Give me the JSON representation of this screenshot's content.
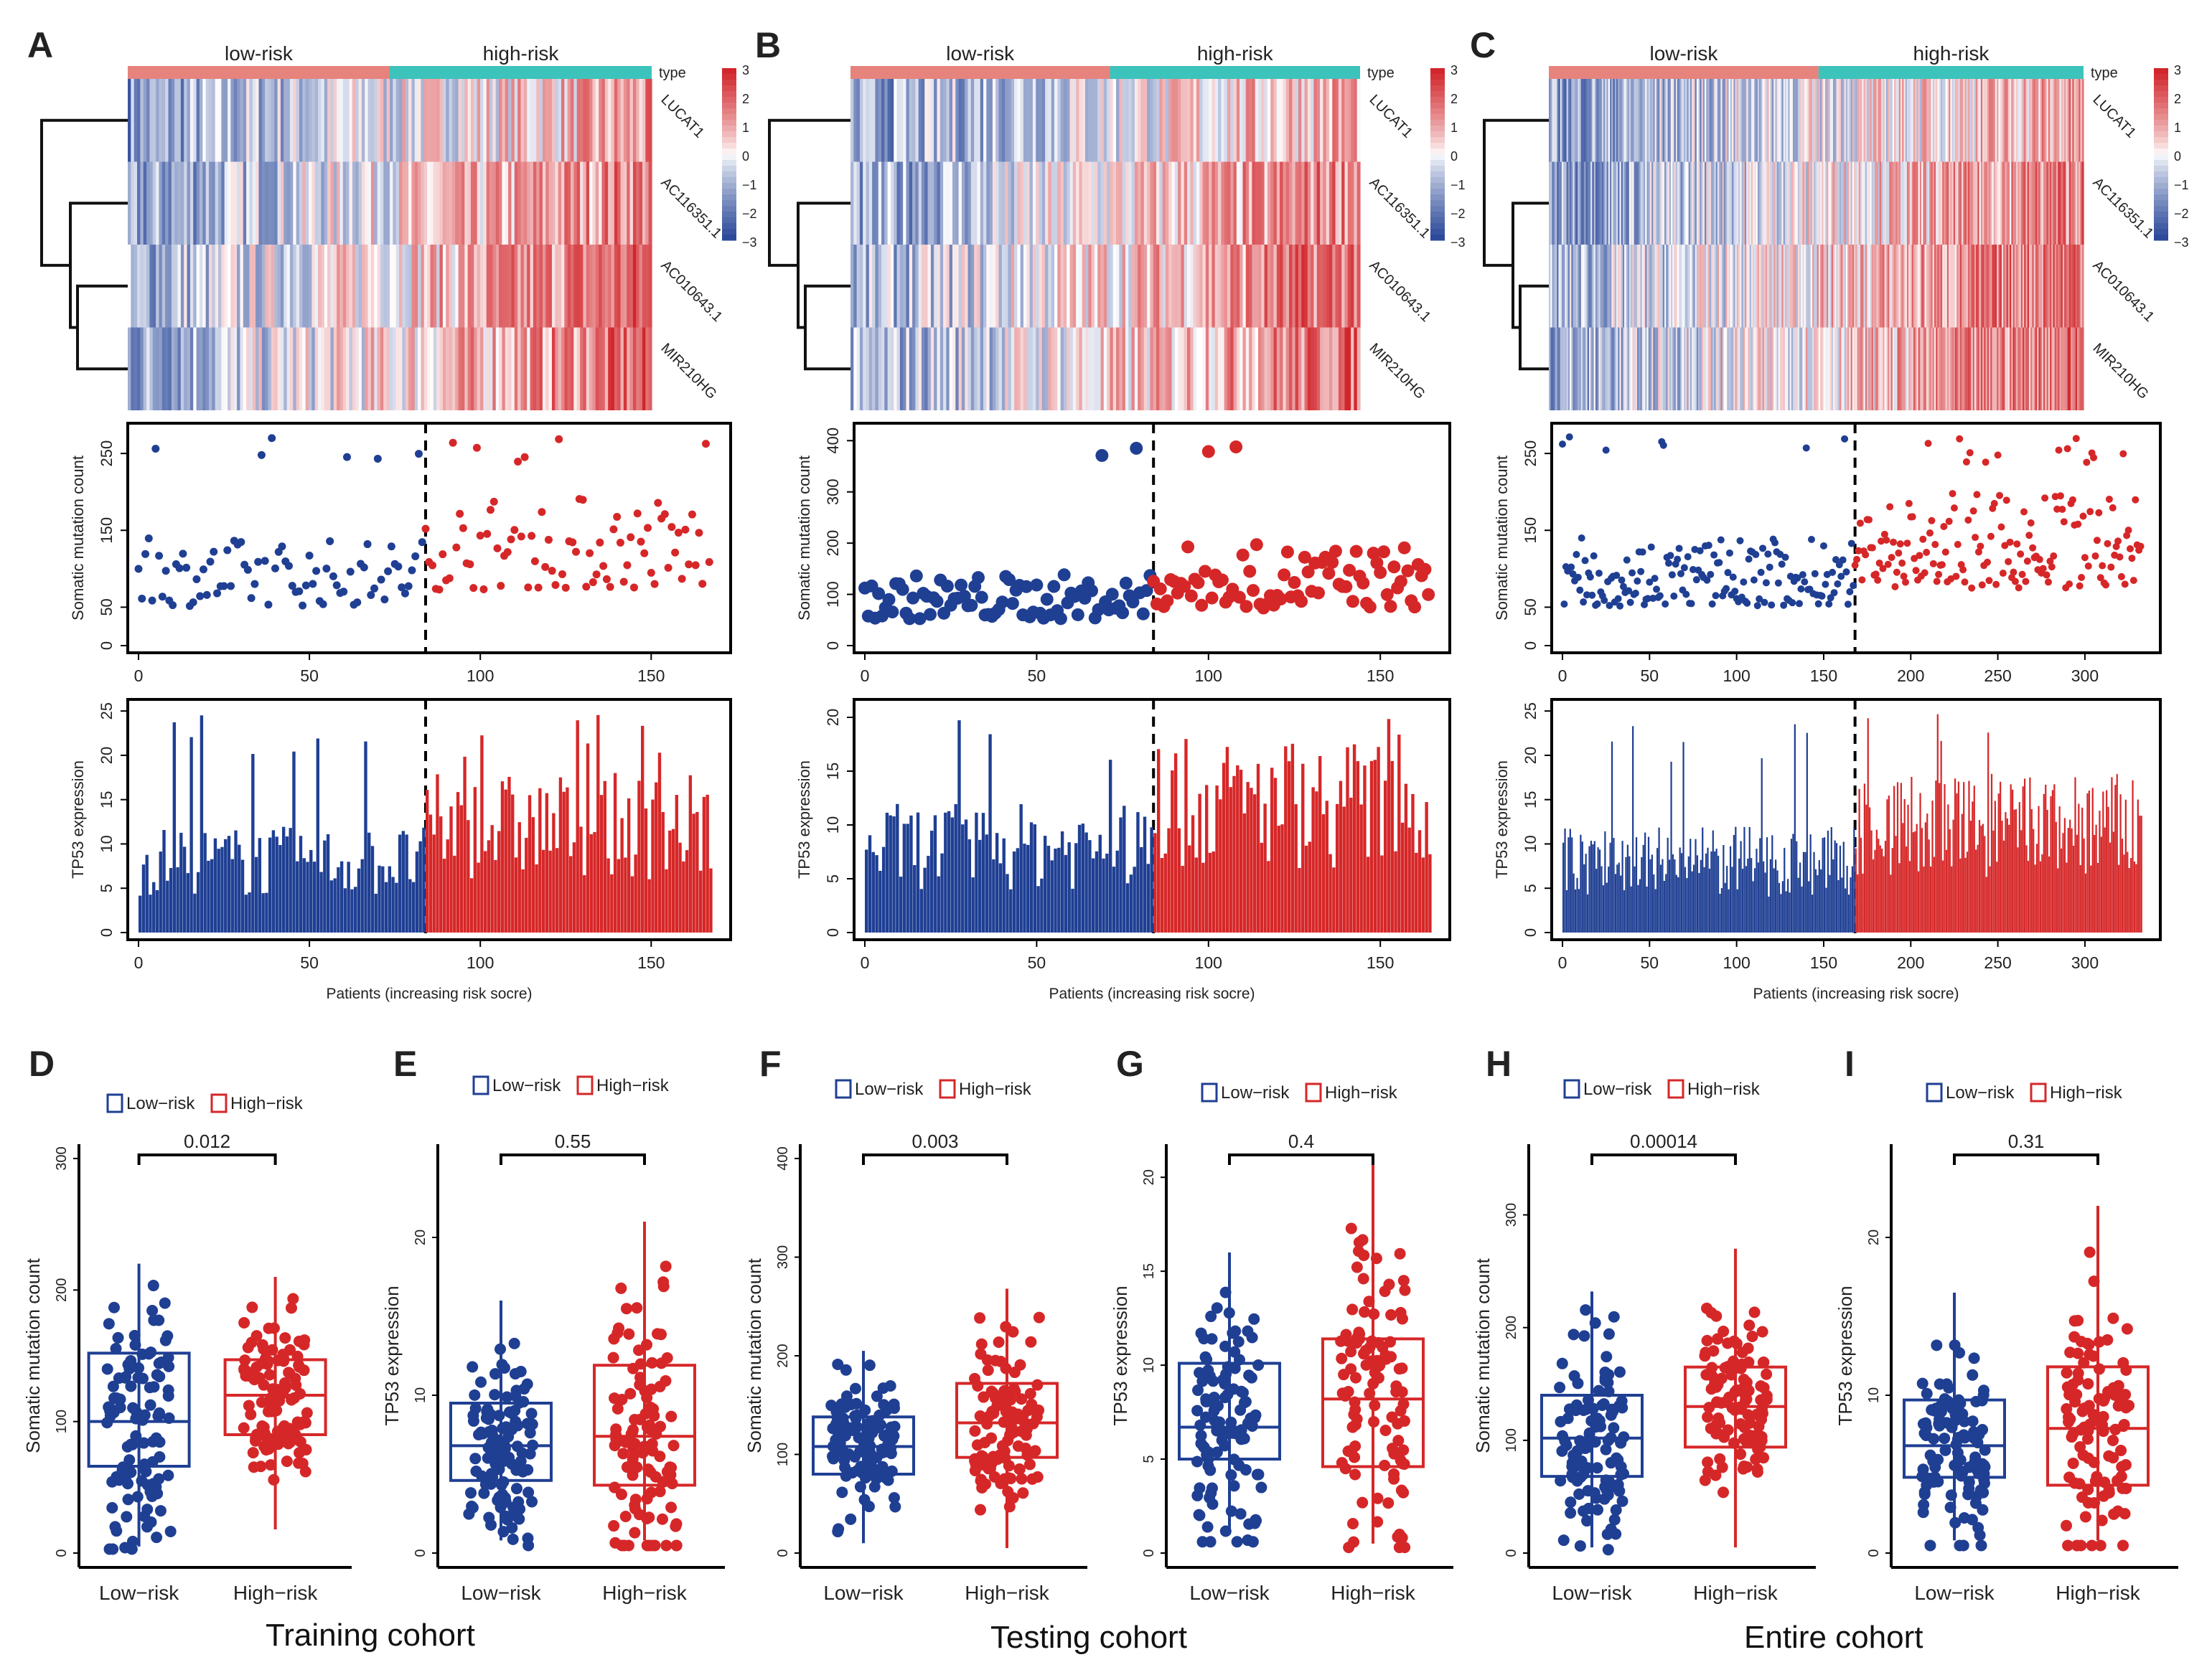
{
  "colors": {
    "low": "#1f3f93",
    "high": "#d62728",
    "low_bar": "#e6837d",
    "high_bar": "#3cc3bb",
    "heat_low": "#2c4a9a",
    "heat_mid": "#ffffff",
    "heat_high": "#d1262b"
  },
  "panels": {
    "A": {
      "label": "A",
      "n": 168,
      "cut": 84,
      "xticks": [
        "0",
        "50",
        "100",
        "150"
      ],
      "mut_ticks": [
        "0",
        "50",
        "150",
        "250"
      ],
      "tp53_ticks": [
        "0",
        "5",
        "10",
        "15",
        "20",
        "25"
      ]
    },
    "B": {
      "label": "B",
      "n": 165,
      "cut": 84,
      "xticks": [
        "0",
        "50",
        "100",
        "150"
      ],
      "mut_ticks": [
        "0",
        "100",
        "200",
        "300",
        "400"
      ],
      "tp53_ticks": [
        "0",
        "5",
        "10",
        "15",
        "20"
      ]
    },
    "C": {
      "label": "C",
      "n": 333,
      "cut": 168,
      "xticks": [
        "0",
        "50",
        "100",
        "150",
        "200",
        "250",
        "300"
      ],
      "mut_ticks": [
        "0",
        "50",
        "150",
        "250"
      ],
      "tp53_ticks": [
        "0",
        "5",
        "10",
        "15",
        "20",
        "25"
      ]
    }
  },
  "heatmap": {
    "groups": [
      "low-risk",
      "high-risk"
    ],
    "type_label": "type",
    "genes": [
      "LUCAT1",
      "AC116351.1",
      "AC010643.1",
      "MIR210HG"
    ],
    "scale_ticks": [
      "3",
      "2",
      "1",
      "0",
      "−1",
      "−2",
      "−3"
    ]
  },
  "scatter": {
    "ylabel": "Somatic mutation count"
  },
  "bars": {
    "ylabel": "TP53 expression",
    "xlabel": "Patients (increasing risk socre)"
  },
  "legend": {
    "low": "Low−risk",
    "high": "High−risk"
  },
  "chart_data": [
    {
      "type": "box",
      "panel": "D",
      "metric": "Somatic mutation count",
      "categories": [
        "Low−risk",
        "High−risk"
      ],
      "pvalue": "0.012",
      "ylim": [
        0,
        300
      ],
      "ticks": [
        "0",
        "100",
        "200",
        "300"
      ],
      "series": [
        {
          "name": "Low−risk",
          "q1": 66,
          "median": 100,
          "q3": 152,
          "min": 5,
          "max": 220
        },
        {
          "name": "High−risk",
          "q1": 90,
          "median": 120,
          "q3": 147,
          "min": 18,
          "max": 210
        }
      ]
    },
    {
      "type": "box",
      "panel": "E",
      "metric": "TP53 expression",
      "categories": [
        "Low−risk",
        "High−risk"
      ],
      "pvalue": "0.55",
      "ylim": [
        0,
        25
      ],
      "ticks": [
        "0",
        "10",
        "20"
      ],
      "series": [
        {
          "name": "Low−risk",
          "q1": 4.6,
          "median": 6.8,
          "q3": 9.5,
          "min": 0.8,
          "max": 16
        },
        {
          "name": "High−risk",
          "q1": 4.3,
          "median": 7.4,
          "q3": 11.9,
          "min": 0.8,
          "max": 21
        }
      ]
    },
    {
      "type": "box",
      "panel": "F",
      "metric": "Somatic mutation count",
      "categories": [
        "Low−risk",
        "High−risk"
      ],
      "pvalue": "0.003",
      "ylim": [
        0,
        400
      ],
      "ticks": [
        "0",
        "100",
        "200",
        "300",
        "400"
      ],
      "series": [
        {
          "name": "Low−risk",
          "q1": 80,
          "median": 108,
          "q3": 138,
          "min": 10,
          "max": 205
        },
        {
          "name": "High−risk",
          "q1": 97,
          "median": 132,
          "q3": 172,
          "min": 5,
          "max": 268
        }
      ]
    },
    {
      "type": "box",
      "panel": "G",
      "metric": "TP53 expression",
      "categories": [
        "Low−risk",
        "High−risk"
      ],
      "pvalue": "0.4",
      "ylim": [
        0,
        21
      ],
      "ticks": [
        "0",
        "5",
        "10",
        "15",
        "20"
      ],
      "series": [
        {
          "name": "Low−risk",
          "q1": 5,
          "median": 6.7,
          "q3": 10.1,
          "min": 1,
          "max": 16
        },
        {
          "name": "High−risk",
          "q1": 4.6,
          "median": 8.2,
          "q3": 11.4,
          "min": 0.5,
          "max": 21
        }
      ]
    },
    {
      "type": "box",
      "panel": "H",
      "metric": "Somatic mutation count",
      "categories": [
        "Low−risk",
        "High−risk"
      ],
      "pvalue": "0.00014",
      "ylim": [
        0,
        350
      ],
      "ticks": [
        "0",
        "100",
        "200",
        "300"
      ],
      "series": [
        {
          "name": "Low−risk",
          "q1": 68,
          "median": 102,
          "q3": 140,
          "min": 5,
          "max": 232
        },
        {
          "name": "High−risk",
          "q1": 94,
          "median": 130,
          "q3": 165,
          "min": 5,
          "max": 270
        }
      ]
    },
    {
      "type": "box",
      "panel": "I",
      "metric": "TP53 expression",
      "categories": [
        "Low−risk",
        "High−risk"
      ],
      "pvalue": "0.31",
      "ylim": [
        0,
        25
      ],
      "ticks": [
        "0",
        "10",
        "20"
      ],
      "series": [
        {
          "name": "Low−risk",
          "q1": 4.8,
          "median": 6.8,
          "q3": 9.7,
          "min": 0.8,
          "max": 16.5
        },
        {
          "name": "High−risk",
          "q1": 4.3,
          "median": 7.9,
          "q3": 11.8,
          "min": 0.8,
          "max": 22
        }
      ]
    }
  ],
  "captions": {
    "training": "Training cohort",
    "testing": "Testing cohort",
    "entire": "Entire cohort"
  }
}
